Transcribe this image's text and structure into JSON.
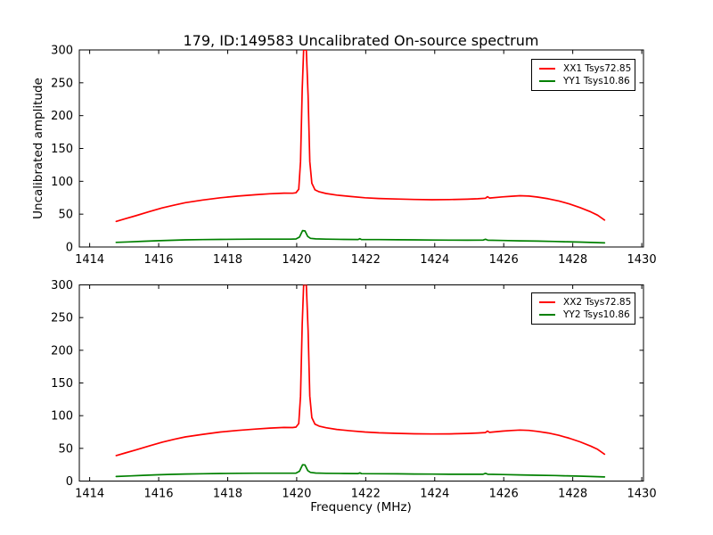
{
  "figure": {
    "background": "#ffffff",
    "frame_color": "#000000",
    "text_color": "#000000"
  },
  "chart_data": [
    {
      "type": "line",
      "title": "179, ID:149583 Uncalibrated On-source spectrum",
      "xlabel": "",
      "ylabel": "Uncalibrated amplitude",
      "xlim": [
        1413.7,
        1430.05
      ],
      "ylim": [
        0,
        300
      ],
      "x_ticks": [
        1414,
        1416,
        1418,
        1420,
        1422,
        1424,
        1426,
        1428,
        1430
      ],
      "y_ticks": [
        0,
        50,
        100,
        150,
        200,
        250,
        300
      ],
      "grid": false,
      "legend_position": "upper right",
      "series": [
        {
          "name": "XX1 Tsys72.85",
          "color": "#ff0000",
          "points": [
            [
              1414.77,
              39
            ],
            [
              1415.03,
              43
            ],
            [
              1415.33,
              47.5
            ],
            [
              1415.74,
              54
            ],
            [
              1416.1,
              59.5
            ],
            [
              1416.46,
              64
            ],
            [
              1416.77,
              67.5
            ],
            [
              1417.28,
              71.5
            ],
            [
              1417.79,
              75
            ],
            [
              1418.3,
              77.5
            ],
            [
              1418.81,
              79.5
            ],
            [
              1419.22,
              81
            ],
            [
              1419.63,
              82
            ],
            [
              1419.88,
              81.8
            ],
            [
              1419.98,
              82.5
            ],
            [
              1420.06,
              88
            ],
            [
              1420.11,
              130
            ],
            [
              1420.16,
              240
            ],
            [
              1420.2,
              300
            ],
            [
              1420.28,
              300
            ],
            [
              1420.33,
              230
            ],
            [
              1420.38,
              130
            ],
            [
              1420.44,
              97
            ],
            [
              1420.53,
              87
            ],
            [
              1420.65,
              84
            ],
            [
              1420.85,
              81.5
            ],
            [
              1421.16,
              79
            ],
            [
              1421.57,
              76.8
            ],
            [
              1421.98,
              75
            ],
            [
              1422.38,
              73.8
            ],
            [
              1422.9,
              73
            ],
            [
              1423.41,
              72.3
            ],
            [
              1423.92,
              72
            ],
            [
              1424.43,
              72.2
            ],
            [
              1424.94,
              72.8
            ],
            [
              1425.25,
              73.5
            ],
            [
              1425.47,
              74.2
            ],
            [
              1425.53,
              76.5
            ],
            [
              1425.59,
              74.5
            ],
            [
              1425.96,
              76.3
            ],
            [
              1426.22,
              77.3
            ],
            [
              1426.47,
              78
            ],
            [
              1426.73,
              77.5
            ],
            [
              1426.98,
              76
            ],
            [
              1427.29,
              73.5
            ],
            [
              1427.6,
              70
            ],
            [
              1427.9,
              65.5
            ],
            [
              1428.21,
              60
            ],
            [
              1428.52,
              53.5
            ],
            [
              1428.72,
              48.5
            ],
            [
              1428.92,
              41
            ]
          ]
        },
        {
          "name": "YY1 Tsys10.86",
          "color": "#008000",
          "points": [
            [
              1414.77,
              7
            ],
            [
              1415.13,
              7.8
            ],
            [
              1415.54,
              8.7
            ],
            [
              1415.95,
              9.5
            ],
            [
              1416.36,
              10.2
            ],
            [
              1416.77,
              10.8
            ],
            [
              1417.28,
              11.2
            ],
            [
              1417.79,
              11.6
            ],
            [
              1418.3,
              11.8
            ],
            [
              1418.81,
              12
            ],
            [
              1419.32,
              12
            ],
            [
              1419.83,
              12
            ],
            [
              1419.98,
              12.2
            ],
            [
              1420.08,
              15
            ],
            [
              1420.17,
              25
            ],
            [
              1420.24,
              24.5
            ],
            [
              1420.32,
              16
            ],
            [
              1420.4,
              13.2
            ],
            [
              1420.55,
              12.3
            ],
            [
              1420.85,
              11.9
            ],
            [
              1421.37,
              11.6
            ],
            [
              1421.78,
              11.4
            ],
            [
              1421.83,
              12.6
            ],
            [
              1421.88,
              11.3
            ],
            [
              1422.38,
              11.2
            ],
            [
              1422.9,
              11
            ],
            [
              1423.41,
              10.8
            ],
            [
              1423.92,
              10.6
            ],
            [
              1424.43,
              10.4
            ],
            [
              1424.94,
              10.3
            ],
            [
              1425.4,
              10.4
            ],
            [
              1425.47,
              11.8
            ],
            [
              1425.54,
              10.3
            ],
            [
              1425.96,
              9.9
            ],
            [
              1426.47,
              9.4
            ],
            [
              1426.98,
              8.9
            ],
            [
              1427.49,
              8.4
            ],
            [
              1427.75,
              8
            ],
            [
              1428.21,
              7.5
            ],
            [
              1428.62,
              6.8
            ],
            [
              1428.92,
              6.3
            ]
          ]
        }
      ]
    },
    {
      "type": "line",
      "title": "",
      "xlabel": "Frequency (MHz)",
      "ylabel": "",
      "xlim": [
        1413.7,
        1430.05
      ],
      "ylim": [
        0,
        300
      ],
      "x_ticks": [
        1414,
        1416,
        1418,
        1420,
        1422,
        1424,
        1426,
        1428,
        1430
      ],
      "y_ticks": [
        0,
        50,
        100,
        150,
        200,
        250,
        300
      ],
      "grid": false,
      "legend_position": "upper right",
      "series": [
        {
          "name": "XX2 Tsys72.85",
          "color": "#ff0000",
          "points": [
            [
              1414.77,
              39
            ],
            [
              1415.03,
              43
            ],
            [
              1415.33,
              47.5
            ],
            [
              1415.74,
              54
            ],
            [
              1416.1,
              59.5
            ],
            [
              1416.46,
              64
            ],
            [
              1416.77,
              67.5
            ],
            [
              1417.28,
              71.5
            ],
            [
              1417.79,
              75
            ],
            [
              1418.3,
              77.5
            ],
            [
              1418.81,
              79.5
            ],
            [
              1419.22,
              81
            ],
            [
              1419.63,
              82
            ],
            [
              1419.88,
              81.8
            ],
            [
              1419.98,
              82.5
            ],
            [
              1420.06,
              88
            ],
            [
              1420.11,
              130
            ],
            [
              1420.16,
              240
            ],
            [
              1420.2,
              300
            ],
            [
              1420.28,
              300
            ],
            [
              1420.33,
              230
            ],
            [
              1420.38,
              130
            ],
            [
              1420.44,
              97
            ],
            [
              1420.53,
              87
            ],
            [
              1420.65,
              84
            ],
            [
              1420.85,
              81.5
            ],
            [
              1421.16,
              79
            ],
            [
              1421.57,
              76.8
            ],
            [
              1421.98,
              75
            ],
            [
              1422.38,
              73.8
            ],
            [
              1422.9,
              73
            ],
            [
              1423.41,
              72.3
            ],
            [
              1423.92,
              72
            ],
            [
              1424.43,
              72.2
            ],
            [
              1424.94,
              72.8
            ],
            [
              1425.25,
              73.5
            ],
            [
              1425.47,
              74.2
            ],
            [
              1425.53,
              76.5
            ],
            [
              1425.59,
              74.5
            ],
            [
              1425.96,
              76.3
            ],
            [
              1426.22,
              77.3
            ],
            [
              1426.47,
              78
            ],
            [
              1426.73,
              77.5
            ],
            [
              1426.98,
              76
            ],
            [
              1427.29,
              73.5
            ],
            [
              1427.6,
              70
            ],
            [
              1427.9,
              65.5
            ],
            [
              1428.21,
              60
            ],
            [
              1428.52,
              53.5
            ],
            [
              1428.72,
              48.5
            ],
            [
              1428.92,
              41
            ]
          ]
        },
        {
          "name": "YY2 Tsys10.86",
          "color": "#008000",
          "points": [
            [
              1414.77,
              7
            ],
            [
              1415.13,
              7.8
            ],
            [
              1415.54,
              8.7
            ],
            [
              1415.95,
              9.5
            ],
            [
              1416.36,
              10.2
            ],
            [
              1416.77,
              10.8
            ],
            [
              1417.28,
              11.2
            ],
            [
              1417.79,
              11.6
            ],
            [
              1418.3,
              11.8
            ],
            [
              1418.81,
              12
            ],
            [
              1419.32,
              12
            ],
            [
              1419.83,
              12
            ],
            [
              1419.98,
              12.2
            ],
            [
              1420.08,
              15
            ],
            [
              1420.17,
              25
            ],
            [
              1420.24,
              24.5
            ],
            [
              1420.32,
              16
            ],
            [
              1420.4,
              13.2
            ],
            [
              1420.55,
              12.3
            ],
            [
              1420.85,
              11.9
            ],
            [
              1421.37,
              11.6
            ],
            [
              1421.78,
              11.4
            ],
            [
              1421.83,
              12.6
            ],
            [
              1421.88,
              11.3
            ],
            [
              1422.38,
              11.2
            ],
            [
              1422.9,
              11
            ],
            [
              1423.41,
              10.8
            ],
            [
              1423.92,
              10.6
            ],
            [
              1424.43,
              10.4
            ],
            [
              1424.94,
              10.3
            ],
            [
              1425.4,
              10.4
            ],
            [
              1425.47,
              11.8
            ],
            [
              1425.54,
              10.3
            ],
            [
              1425.96,
              9.9
            ],
            [
              1426.47,
              9.4
            ],
            [
              1426.98,
              8.9
            ],
            [
              1427.49,
              8.4
            ],
            [
              1427.75,
              8
            ],
            [
              1428.21,
              7.5
            ],
            [
              1428.62,
              6.8
            ],
            [
              1428.92,
              6.3
            ]
          ]
        }
      ]
    }
  ]
}
